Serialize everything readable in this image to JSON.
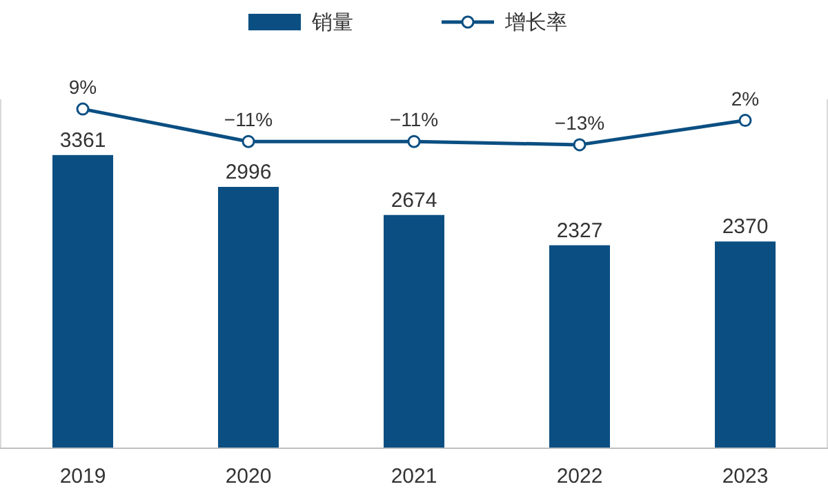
{
  "chart_data": {
    "type": "bar",
    "categories": [
      "2019",
      "2020",
      "2021",
      "2022",
      "2023"
    ],
    "series": [
      {
        "name": "销量",
        "type": "bar",
        "color": "#0b4f82",
        "values": [
          3361,
          2996,
          2674,
          2327,
          2370
        ]
      },
      {
        "name": "增长率",
        "type": "line",
        "axis": "y2",
        "color": "#0b4f82",
        "marker": "circle",
        "values": [
          9,
          -11,
          -11,
          -13,
          2
        ],
        "value_labels": [
          "9%",
          "−11%",
          "−11%",
          "−13%",
          "2%"
        ]
      }
    ],
    "ylim": [
      0,
      4000
    ],
    "y2lim": [
      -200,
      15
    ],
    "tick_labels": "x",
    "data_labels": true,
    "legend": "top"
  }
}
